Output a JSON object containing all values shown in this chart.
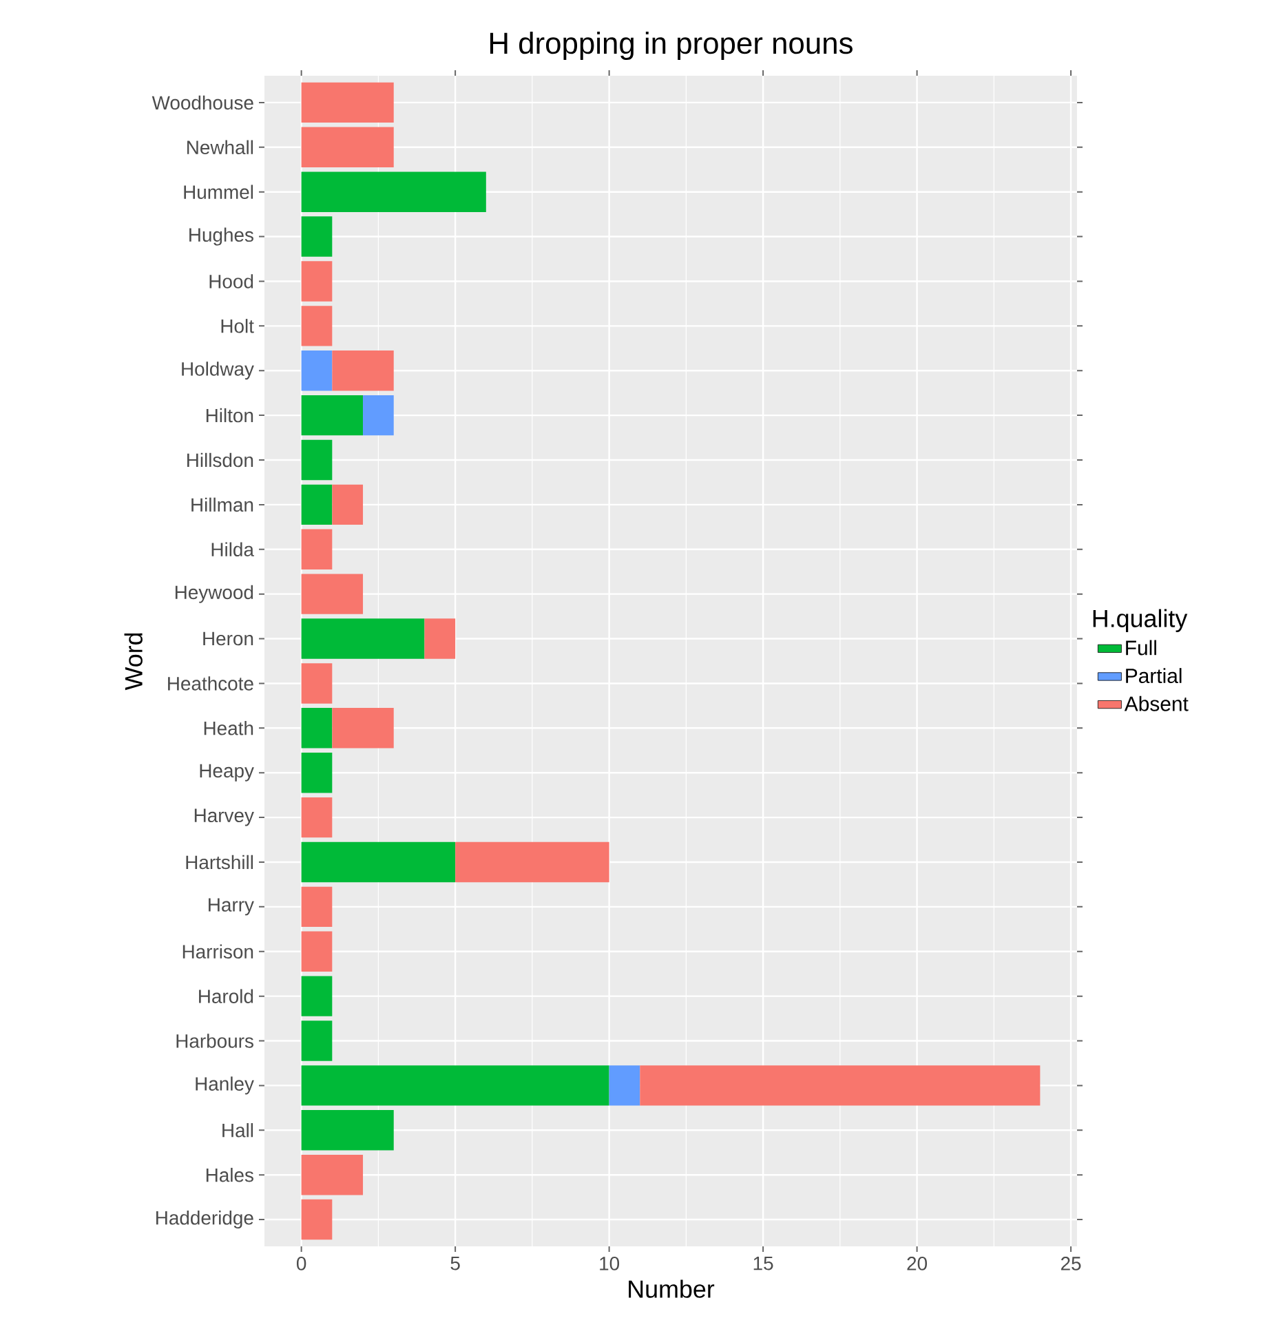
{
  "chart_data": {
    "type": "bar",
    "orientation": "horizontal",
    "stacked": true,
    "title": "H dropping in proper nouns",
    "xlabel": "Number",
    "ylabel": "Word",
    "legend_title": "H.quality",
    "legend": "right",
    "grid": true,
    "categories": [
      "Woodhouse",
      "Newhall",
      "Hummel",
      "Hughes",
      "Hood",
      "Holt",
      "Holdway",
      "Hilton",
      "Hillsdon",
      "Hillman",
      "Hilda",
      "Heywood",
      "Heron",
      "Heathcote",
      "Heath",
      "Heapy",
      "Harvey",
      "Hartshill",
      "Harry",
      "Harrison",
      "Harold",
      "Harbours",
      "Hanley",
      "Hall",
      "Hales",
      "Hadderidge"
    ],
    "xlim": [
      -1.2,
      25.2
    ],
    "xticks": [
      0,
      5,
      10,
      15,
      20,
      25
    ],
    "series": [
      {
        "name": "Full",
        "color": "#00ba38",
        "values": [
          0,
          0,
          6,
          1,
          0,
          0,
          0,
          2,
          1,
          1,
          0,
          0,
          4,
          0,
          1,
          1,
          0,
          5,
          0,
          0,
          1,
          1,
          10,
          3,
          0,
          0
        ]
      },
      {
        "name": "Partial",
        "color": "#619cff",
        "values": [
          0,
          0,
          0,
          0,
          0,
          0,
          1,
          1,
          0,
          0,
          0,
          0,
          0,
          0,
          0,
          0,
          0,
          0,
          0,
          0,
          0,
          0,
          1,
          0,
          0,
          0
        ]
      },
      {
        "name": "Absent",
        "color": "#f8766d",
        "values": [
          3,
          3,
          0,
          0,
          1,
          1,
          2,
          0,
          0,
          1,
          1,
          2,
          1,
          1,
          2,
          0,
          1,
          5,
          1,
          1,
          0,
          0,
          13,
          0,
          2,
          1
        ]
      }
    ]
  }
}
